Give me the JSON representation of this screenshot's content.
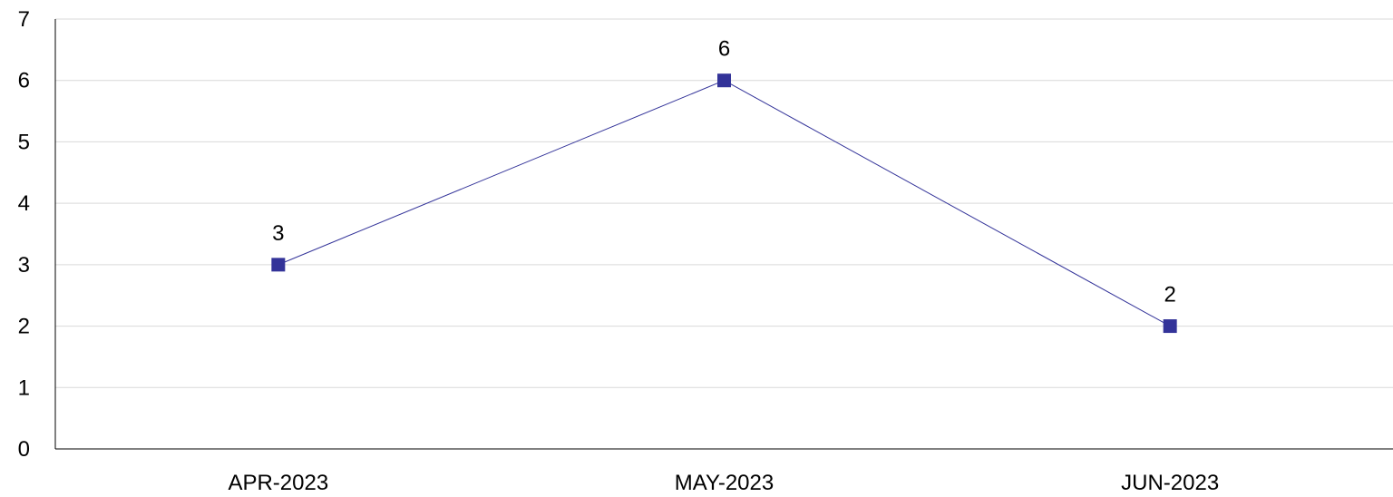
{
  "chart_data": {
    "type": "line",
    "categories": [
      "APR-2023",
      "MAY-2023",
      "JUN-2023"
    ],
    "series": [
      {
        "values": [
          3,
          6,
          2
        ]
      }
    ],
    "ylim": [
      0,
      7
    ],
    "yticks": [
      "0",
      "1",
      "2",
      "3",
      "4",
      "5",
      "6",
      "7"
    ],
    "data_labels": [
      "3",
      "6",
      "2"
    ],
    "grid": true,
    "legend": "none",
    "title": "",
    "xlabel": "",
    "ylabel": "",
    "colors": {
      "series_line": "#333399",
      "marker": "#333399",
      "gridline": "#d9d9d9",
      "axis": "#000000"
    }
  }
}
